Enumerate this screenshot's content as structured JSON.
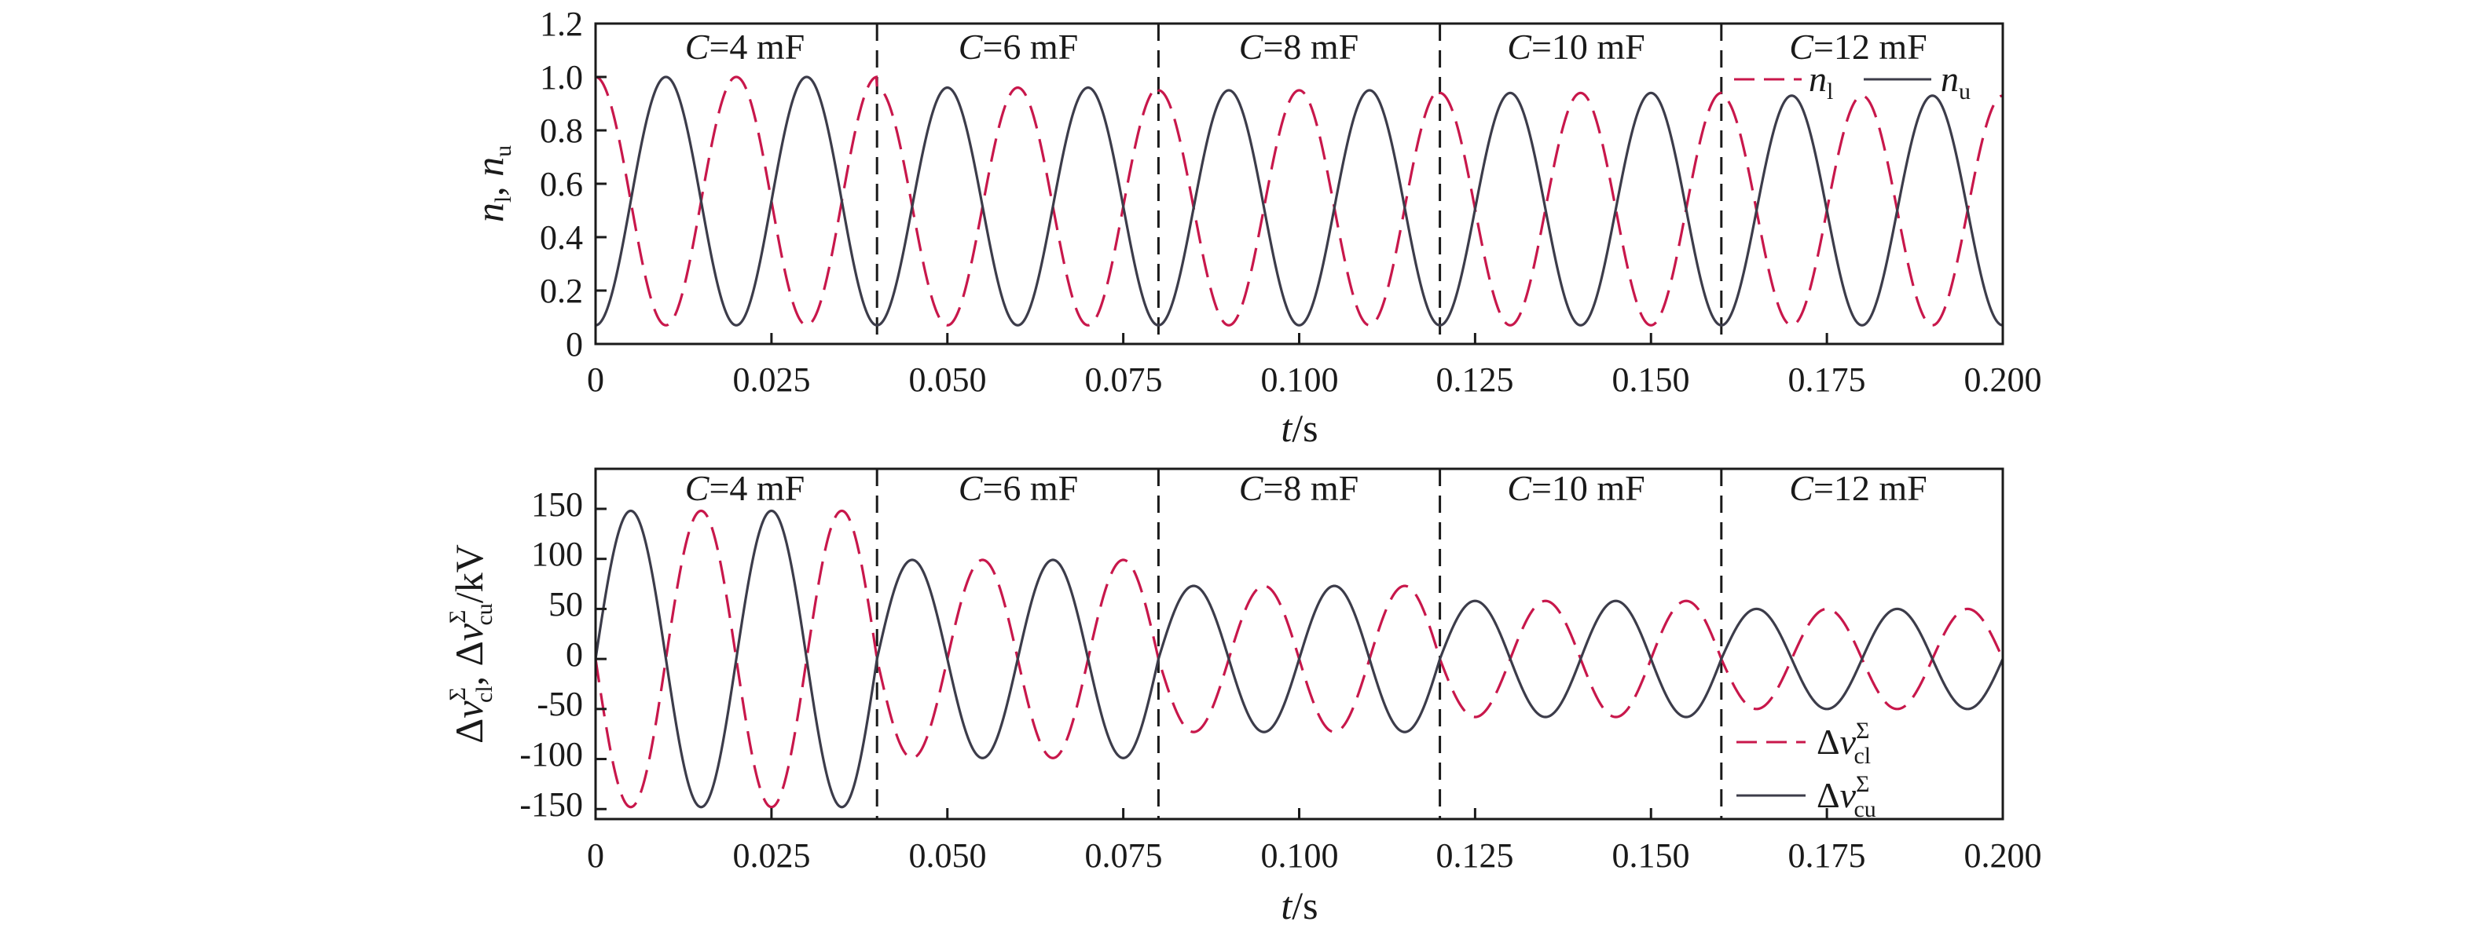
{
  "colors": {
    "dashed_series": "#c8174b",
    "solid_series": "#3c3c4a",
    "axis": "#1a1a1a"
  },
  "chart_data": [
    {
      "type": "line",
      "title": "",
      "xlabel": "t/s",
      "ylabel": "n_l, n_u",
      "xlim": [
        0,
        0.2
      ],
      "ylim": [
        0,
        1.2
      ],
      "xticks": [
        "0",
        "0.025",
        "0.050",
        "0.075",
        "0.100",
        "0.125",
        "0.150",
        "0.175",
        "0.200"
      ],
      "yticks": [
        "0",
        "0.2",
        "0.4",
        "0.6",
        "0.8",
        "1.0",
        "1.2"
      ],
      "grid": false,
      "legend_position": "top-right",
      "segment_boundaries": [
        0.04,
        0.08,
        0.12,
        0.16
      ],
      "annotations": [
        "C=4 mF",
        "C=6 mF",
        "C=8 mF",
        "C=10 mF",
        "C=12 mF"
      ],
      "frequency_hz": 50,
      "series": [
        {
          "name": "n_l",
          "style": "dashed",
          "segments": [
            {
              "t": [
                0,
                0.04
              ],
              "min": 0.07,
              "max": 1.0
            },
            {
              "t": [
                0.04,
                0.08
              ],
              "min": 0.07,
              "max": 0.96
            },
            {
              "t": [
                0.08,
                0.12
              ],
              "min": 0.07,
              "max": 0.95
            },
            {
              "t": [
                0.12,
                0.16
              ],
              "min": 0.07,
              "max": 0.94
            },
            {
              "t": [
                0.16,
                0.2
              ],
              "min": 0.07,
              "max": 0.93
            }
          ]
        },
        {
          "name": "n_u",
          "style": "solid",
          "segments": [
            {
              "t": [
                0,
                0.04
              ],
              "min": 0.07,
              "max": 1.0
            },
            {
              "t": [
                0.04,
                0.08
              ],
              "min": 0.07,
              "max": 0.96
            },
            {
              "t": [
                0.08,
                0.12
              ],
              "min": 0.07,
              "max": 0.95
            },
            {
              "t": [
                0.12,
                0.16
              ],
              "min": 0.07,
              "max": 0.94
            },
            {
              "t": [
                0.16,
                0.2
              ],
              "min": 0.07,
              "max": 0.93
            }
          ]
        }
      ]
    },
    {
      "type": "line",
      "title": "",
      "xlabel": "t/s",
      "ylabel": "Δv_cl^Σ, Δv_cu^Σ/kV",
      "xlim": [
        0,
        0.2
      ],
      "ylim": [
        -160,
        190
      ],
      "xticks": [
        "0",
        "0.025",
        "0.050",
        "0.075",
        "0.100",
        "0.125",
        "0.150",
        "0.175",
        "0.200"
      ],
      "yticks": [
        "-150",
        "-100",
        "-50",
        "0",
        "50",
        "100",
        "150"
      ],
      "grid": false,
      "legend_position": "bottom-right",
      "segment_boundaries": [
        0.04,
        0.08,
        0.12,
        0.16
      ],
      "annotations": [
        "C=4 mF",
        "C=6 mF",
        "C=8 mF",
        "C=10 mF",
        "C=12 mF"
      ],
      "frequency_hz": 50,
      "series": [
        {
          "name": "Δv_cl^Σ",
          "style": "dashed",
          "amplitudes": [
            148,
            99,
            73,
            58,
            50
          ]
        },
        {
          "name": "Δv_cu^Σ",
          "style": "solid",
          "amplitudes": [
            148,
            99,
            73,
            58,
            50
          ]
        }
      ]
    }
  ]
}
